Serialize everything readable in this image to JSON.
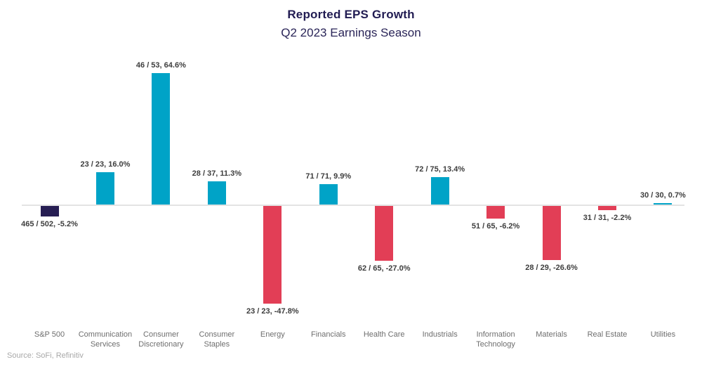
{
  "header": {
    "title": "Reported EPS Growth",
    "subtitle": "Q2 2023 Earnings Season"
  },
  "footer": {
    "source": "Source: SoFi, Refinitiv"
  },
  "colors": {
    "positive_bar": "#00a3c7",
    "negative_bar": "#e23e56",
    "sp500_bar": "#261e53",
    "title_text": "#211c52",
    "value_label_text": "#3d3d3d",
    "axis_label_text": "#6e6e6e",
    "baseline": "#e3e3e3",
    "source_text": "#a8a8a8"
  },
  "chart_data": {
    "type": "bar",
    "title": "Reported EPS Growth",
    "subtitle": "Q2 2023 Earnings Season",
    "xlabel": "",
    "ylabel": "",
    "ylim": [
      -55,
      70
    ],
    "grid": false,
    "legend": false,
    "value_unit": "%",
    "label_format": "reported / total, pct_growth",
    "categories": [
      "S&P 500",
      "Communication Services",
      "Consumer Discretionary",
      "Consumer Staples",
      "Energy",
      "Financials",
      "Health Care",
      "Industrials",
      "Information Technology",
      "Materials",
      "Real Estate",
      "Utilities"
    ],
    "values": [
      -5.2,
      16.0,
      64.6,
      11.3,
      -47.8,
      9.9,
      -27.0,
      13.4,
      -6.2,
      -26.6,
      -2.2,
      0.7
    ],
    "data_labels": [
      "465 / 502, -5.2%",
      "23 / 23, 16.0%",
      "46 / 53, 64.6%",
      "28 / 37, 11.3%",
      "23 / 23, -47.8%",
      "71 / 71, 9.9%",
      "62 / 65, -27.0%",
      "72 / 75, 13.4%",
      "51 / 65, -6.2%",
      "28 / 29, -26.6%",
      "31 / 31, -2.2%",
      "30 / 30, 0.7%"
    ],
    "bar_colors": [
      "#261e53",
      "#00a3c7",
      "#00a3c7",
      "#00a3c7",
      "#e23e56",
      "#00a3c7",
      "#e23e56",
      "#00a3c7",
      "#e23e56",
      "#e23e56",
      "#e23e56",
      "#00a3c7"
    ]
  }
}
